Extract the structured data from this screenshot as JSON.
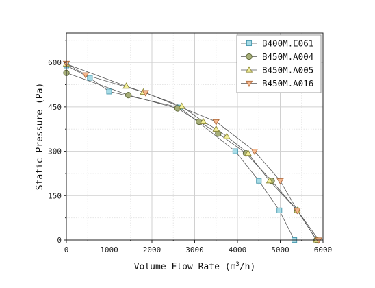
{
  "chart_data": {
    "type": "line",
    "title": "",
    "xlabel_main": "Volume Flow Rate (m",
    "xlabel_sup": "3",
    "xlabel_tail": "/h)",
    "ylabel": "Static Pressure (Pa)",
    "xlim": [
      0,
      6000
    ],
    "ylim": [
      0,
      700
    ],
    "xticks": [
      0,
      1000,
      2000,
      3000,
      4000,
      5000,
      6000
    ],
    "yticks": [
      0,
      150,
      300,
      450,
      600
    ],
    "grid": true,
    "legend_position": "top-right",
    "series": [
      {
        "name": "B400M.E061",
        "marker": "square",
        "fill": "#a6dbe6",
        "stroke": "#4a98ad",
        "x": [
          0,
          550,
          1000,
          2650,
          3950,
          4500,
          4980,
          5330
        ],
        "y": [
          590,
          548,
          502,
          448,
          300,
          200,
          100,
          0
        ]
      },
      {
        "name": "B450M.A004",
        "marker": "circle",
        "fill": "#a6ae78",
        "stroke": "#5d6638",
        "x": [
          0,
          1450,
          2600,
          3100,
          3550,
          4200,
          4800,
          5400,
          5850
        ],
        "y": [
          565,
          490,
          445,
          400,
          360,
          293,
          200,
          100,
          0
        ]
      },
      {
        "name": "B450M.A005",
        "marker": "triangle-up",
        "fill": "#f3ef9a",
        "stroke": "#8e8a3b",
        "x": [
          0,
          1400,
          1800,
          2700,
          3200,
          3500,
          3750,
          4250,
          4750,
          5400,
          5850
        ],
        "y": [
          595,
          520,
          500,
          452,
          400,
          375,
          350,
          293,
          200,
          100,
          0
        ]
      },
      {
        "name": "B450M.A016",
        "marker": "triangle-down",
        "fill": "#f3b78e",
        "stroke": "#b06a3b",
        "x": [
          0,
          450,
          1850,
          3500,
          4400,
          5000,
          5400,
          5900
        ],
        "y": [
          597,
          558,
          498,
          400,
          300,
          200,
          100,
          0
        ]
      }
    ]
  }
}
